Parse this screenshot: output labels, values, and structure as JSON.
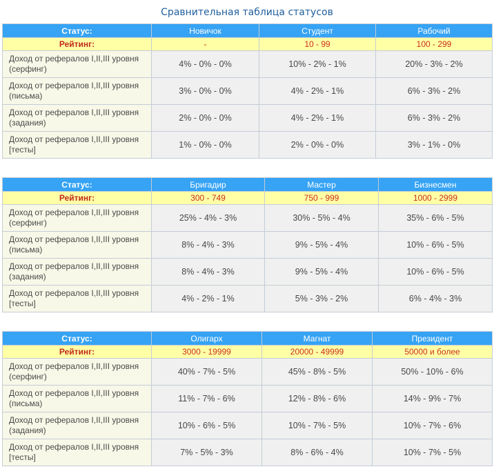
{
  "page": {
    "title": "Сравнительная таблица статусов"
  },
  "tables": [
    {
      "status_label": "Статус:",
      "rating_label": "Рейтинг:",
      "statuses": [
        "Новичок",
        "Студент",
        "Рабочий"
      ],
      "ratings": [
        "-",
        "10 - 99",
        "100 - 299"
      ],
      "rows": [
        {
          "label": "Доход от рефералов I,II,III уровня (серфинг)",
          "values": [
            "4% - 0% - 0%",
            "10% - 2% - 1%",
            "20% - 3% - 2%"
          ]
        },
        {
          "label": "Доход от рефералов I,II,III уровня (письма)",
          "values": [
            "3% - 0% - 0%",
            "4% - 2% - 1%",
            "6% - 3% - 2%"
          ]
        },
        {
          "label": "Доход от рефералов I,II,III уровня (задания)",
          "values": [
            "2% - 0% - 0%",
            "4% - 2% - 1%",
            "6% - 3% - 2%"
          ]
        },
        {
          "label": "Доход от рефералов I,II,III уровня [тесты]",
          "values": [
            "1% - 0% - 0%",
            "2% - 0% - 0%",
            "3% - 1% - 0%"
          ]
        }
      ]
    },
    {
      "status_label": "Статус:",
      "rating_label": "Рейтинг:",
      "statuses": [
        "Бригадир",
        "Мастер",
        "Бизнесмен"
      ],
      "ratings": [
        "300 - 749",
        "750 - 999",
        "1000 - 2999"
      ],
      "rows": [
        {
          "label": "Доход от рефералов I,II,III уровня (серфинг)",
          "values": [
            "25% - 4% - 3%",
            "30% - 5% - 4%",
            "35% - 6% - 5%"
          ]
        },
        {
          "label": "Доход от рефералов I,II,III уровня (письма)",
          "values": [
            "8% - 4% - 3%",
            "9% - 5% - 4%",
            "10% - 6% - 5%"
          ]
        },
        {
          "label": "Доход от рефералов I,II,III уровня (задания)",
          "values": [
            "8% - 4% - 3%",
            "9% - 5% - 4%",
            "10% - 6% - 5%"
          ]
        },
        {
          "label": "Доход от рефералов I,II,III уровня [тесты]",
          "values": [
            "4% - 2% - 1%",
            "5% - 3% - 2%",
            "6% - 4% - 3%"
          ]
        }
      ]
    },
    {
      "status_label": "Статус:",
      "rating_label": "Рейтинг:",
      "statuses": [
        "Олигарх",
        "Магнат",
        "Президент"
      ],
      "ratings": [
        "3000 - 19999",
        "20000 - 49999",
        "50000 и более"
      ],
      "rows": [
        {
          "label": "Доход от рефералов I,II,III уровня (серфинг)",
          "values": [
            "40% - 7% - 5%",
            "45% - 8% - 5%",
            "50% - 10% - 6%"
          ]
        },
        {
          "label": "Доход от рефералов I,II,III уровня (письма)",
          "values": [
            "11% - 7% - 6%",
            "12% - 8% - 6%",
            "14% - 9% - 7%"
          ]
        },
        {
          "label": "Доход от рефералов I,II,III уровня (задания)",
          "values": [
            "10% - 6% - 5%",
            "10% - 7% - 5%",
            "10% - 7% - 6%"
          ]
        },
        {
          "label": "Доход от рефералов I,II,III уровня [тесты]",
          "values": [
            "7% - 5% - 3%",
            "8% - 6% - 4%",
            "10% - 7% - 5%"
          ]
        }
      ]
    }
  ]
}
